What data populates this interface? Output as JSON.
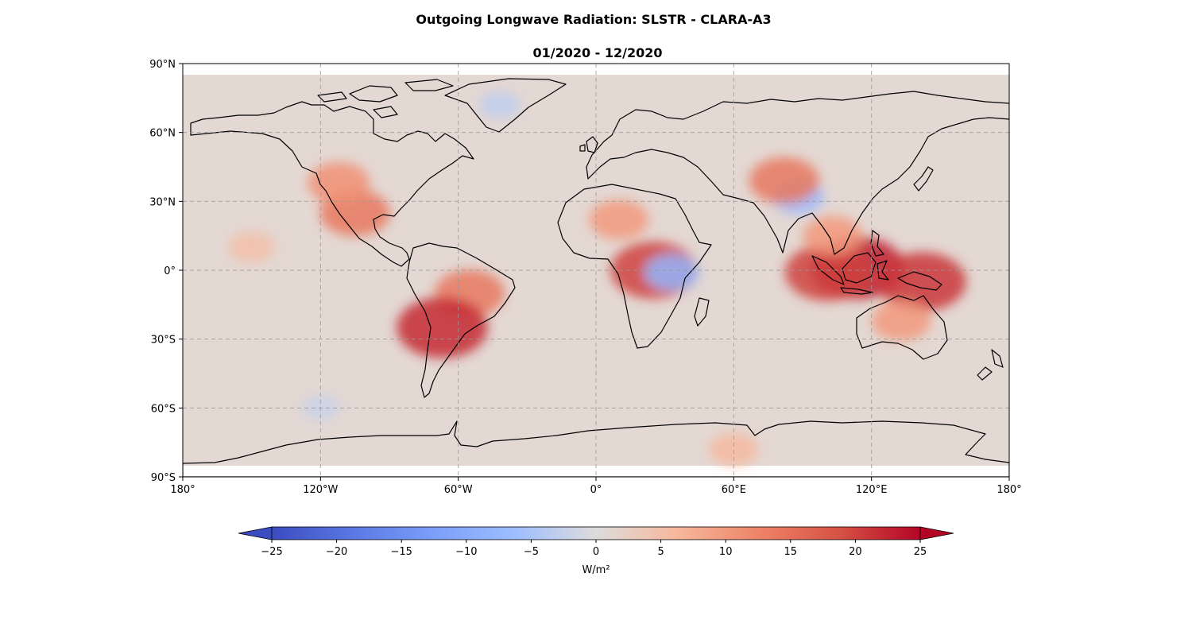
{
  "figure": {
    "title": "Outgoing Longwave Radiation: SLSTR - CLARA-A3",
    "subtitle": "01/2020 - 12/2020"
  },
  "chart_data": {
    "type": "heatmap",
    "projection": "PlateCarree",
    "title": "Outgoing Longwave Radiation: SLSTR - CLARA-A3",
    "subtitle": "01/2020 - 12/2020",
    "xlim": [
      -180,
      180
    ],
    "ylim": [
      -90,
      90
    ],
    "x_ticks": [
      {
        "value": -180,
        "label": "180°"
      },
      {
        "value": -120,
        "label": "120°W"
      },
      {
        "value": -60,
        "label": "60°W"
      },
      {
        "value": 0,
        "label": "0°"
      },
      {
        "value": 60,
        "label": "60°E"
      },
      {
        "value": 120,
        "label": "120°E"
      },
      {
        "value": 180,
        "label": "180°"
      }
    ],
    "y_ticks": [
      {
        "value": 90,
        "label": "90°N"
      },
      {
        "value": 60,
        "label": "60°N"
      },
      {
        "value": 30,
        "label": "30°N"
      },
      {
        "value": 0,
        "label": "0°"
      },
      {
        "value": -30,
        "label": "30°S"
      },
      {
        "value": -60,
        "label": "60°S"
      },
      {
        "value": -90,
        "label": "90°S"
      }
    ],
    "grid": true,
    "colormap": "coolwarm",
    "colorbar": {
      "min": -25,
      "max": 25,
      "extend": "both",
      "label": "W/m²",
      "ticks": [
        {
          "value": -25,
          "label": "−25"
        },
        {
          "value": -20,
          "label": "−20"
        },
        {
          "value": -15,
          "label": "−15"
        },
        {
          "value": -10,
          "label": "−10"
        },
        {
          "value": -5,
          "label": "−5"
        },
        {
          "value": 0,
          "label": "0"
        },
        {
          "value": 5,
          "label": "5"
        },
        {
          "value": 10,
          "label": "10"
        },
        {
          "value": 15,
          "label": "15"
        },
        {
          "value": 20,
          "label": "20"
        },
        {
          "value": 25,
          "label": "25"
        }
      ]
    },
    "regions": [
      {
        "name": "South America interior",
        "lon": -55,
        "lat": -10,
        "value": 14
      },
      {
        "name": "Central Andes",
        "lon": -67,
        "lat": -25,
        "value": 22
      },
      {
        "name": "Central Africa",
        "lon": 25,
        "lat": 0,
        "value": 20
      },
      {
        "name": "Lake Victoria",
        "lon": 33,
        "lat": -1,
        "value": -8
      },
      {
        "name": "Borneo",
        "lon": 114,
        "lat": 1,
        "value": 23
      },
      {
        "name": "Sumatra",
        "lon": 101,
        "lat": -1,
        "value": 20
      },
      {
        "name": "New Guinea",
        "lon": 142,
        "lat": -5,
        "value": 21
      },
      {
        "name": "Mexico",
        "lon": -105,
        "lat": 25,
        "value": 14
      },
      {
        "name": "Western USA",
        "lon": -112,
        "lat": 38,
        "value": 11
      },
      {
        "name": "Sahara",
        "lon": 10,
        "lat": 22,
        "value": 10
      },
      {
        "name": "Tibetan Plateau",
        "lon": 88,
        "lat": 32,
        "value": -7
      },
      {
        "name": "Tarim Basin",
        "lon": 82,
        "lat": 39,
        "value": 14
      },
      {
        "name": "Southeast Asia",
        "lon": 103,
        "lat": 15,
        "value": 10
      },
      {
        "name": "Northern Australia",
        "lon": 133,
        "lat": -22,
        "value": 10
      },
      {
        "name": "Antarctic interior",
        "lon": 60,
        "lat": -78,
        "value": 6
      },
      {
        "name": "Greenland",
        "lon": -42,
        "lat": 72,
        "value": -3
      },
      {
        "name": "Tropical Pacific",
        "lon": -150,
        "lat": 10,
        "value": 5
      },
      {
        "name": "Southern Ocean",
        "lon": -120,
        "lat": -60,
        "value": -2
      }
    ]
  }
}
